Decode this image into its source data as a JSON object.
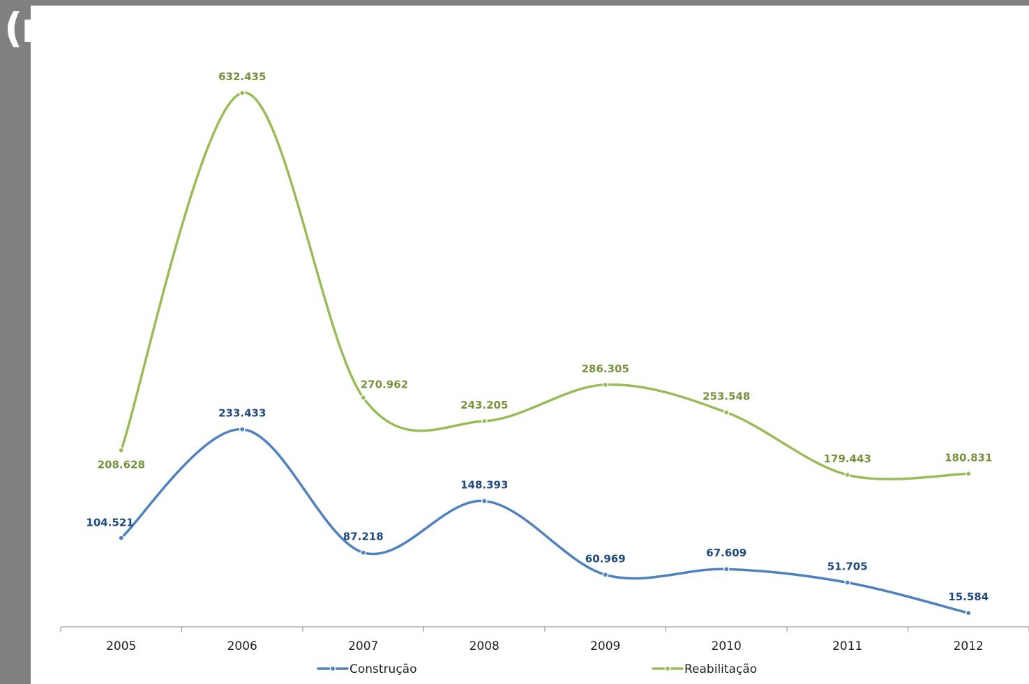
{
  "slide": {
    "corner_glyph": "(ı"
  },
  "colors": {
    "frame": "#808080",
    "panel": "#ffffff",
    "axis": "#888888",
    "tick_text": "#222222"
  },
  "chart_data": {
    "type": "line",
    "smooth": true,
    "categories": [
      "2005",
      "2006",
      "2007",
      "2008",
      "2009",
      "2010",
      "2011",
      "2012"
    ],
    "series": [
      {
        "name": "Construção",
        "color": "#4f81bd",
        "label_color": "#1f497d",
        "values": [
          104.521,
          233.433,
          87.218,
          148.393,
          60.969,
          67.609,
          51.705,
          15.584
        ],
        "value_labels": [
          "104.521",
          "233.433",
          "87.218",
          "148.393",
          "60.969",
          "67.609",
          "51.705",
          "15.584"
        ],
        "label_placement": [
          "above-left",
          "above",
          "above",
          "above",
          "above",
          "above",
          "above",
          "above"
        ]
      },
      {
        "name": "Reabilitação",
        "color": "#9bbb59",
        "label_color": "#76923c",
        "values": [
          208.628,
          632.435,
          270.962,
          243.205,
          286.305,
          253.548,
          179.443,
          180.831
        ],
        "value_labels": [
          "208.628",
          "632.435",
          "270.962",
          "243.205",
          "286.305",
          "253.548",
          "179.443",
          "180.831"
        ],
        "label_placement": [
          "below",
          "above",
          "above-right",
          "above",
          "above",
          "above",
          "above",
          "above"
        ]
      }
    ],
    "title": "",
    "xlabel": "",
    "ylabel": "",
    "y_axis_visible": false,
    "ylim": [
      0,
      650
    ],
    "grid": false,
    "legend": "bottom"
  }
}
